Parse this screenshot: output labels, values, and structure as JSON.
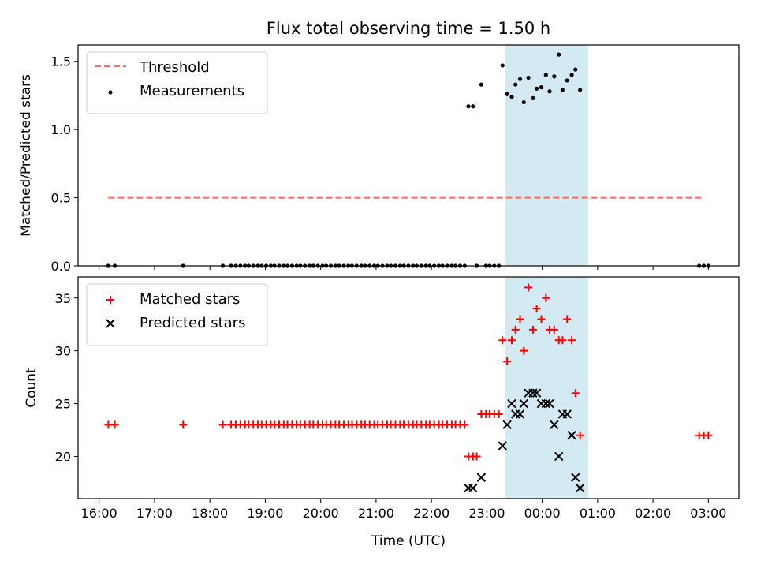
{
  "chart_data": [
    {
      "type": "scatter",
      "title": "Flux total observing time = 1.50 h",
      "xlabel": "",
      "ylabel": "Matched/Predicted stars",
      "ylim": [
        0,
        1.62
      ],
      "yticks": [
        "0.0",
        "0.5",
        "1.0",
        "1.5"
      ],
      "legend_position": "top-left",
      "highlight_band": {
        "start": "23:20",
        "end": "00:50",
        "color": "#add8e6"
      },
      "threshold": {
        "name": "Threshold",
        "value": 0.5,
        "start": "16:10",
        "end": "02:55",
        "color": "#ff6b6b",
        "style": "dashed"
      },
      "series": [
        {
          "name": "Measurements",
          "color": "#000000",
          "marker": "dot",
          "points": [
            [
              "16:10",
              0
            ],
            [
              "16:17",
              0
            ],
            [
              "17:31",
              0
            ],
            [
              "18:14",
              0
            ],
            [
              "18:23",
              0
            ],
            [
              "18:28",
              0
            ],
            [
              "18:33",
              0
            ],
            [
              "18:38",
              0
            ],
            [
              "18:42",
              0
            ],
            [
              "18:47",
              0
            ],
            [
              "18:52",
              0
            ],
            [
              "18:56",
              0
            ],
            [
              "19:01",
              0
            ],
            [
              "19:06",
              0
            ],
            [
              "19:10",
              0
            ],
            [
              "19:15",
              0
            ],
            [
              "19:20",
              0
            ],
            [
              "19:24",
              0
            ],
            [
              "19:29",
              0
            ],
            [
              "19:34",
              0
            ],
            [
              "19:38",
              0
            ],
            [
              "19:43",
              0
            ],
            [
              "19:48",
              0
            ],
            [
              "19:52",
              0
            ],
            [
              "19:57",
              0
            ],
            [
              "20:02",
              0
            ],
            [
              "20:06",
              0
            ],
            [
              "20:11",
              0
            ],
            [
              "20:16",
              0
            ],
            [
              "20:20",
              0
            ],
            [
              "20:25",
              0
            ],
            [
              "20:30",
              0
            ],
            [
              "20:34",
              0
            ],
            [
              "20:39",
              0
            ],
            [
              "20:44",
              0
            ],
            [
              "20:48",
              0
            ],
            [
              "20:53",
              0
            ],
            [
              "20:58",
              0
            ],
            [
              "21:02",
              0
            ],
            [
              "21:07",
              0
            ],
            [
              "21:12",
              0
            ],
            [
              "21:16",
              0
            ],
            [
              "21:21",
              0
            ],
            [
              "21:26",
              0
            ],
            [
              "21:30",
              0
            ],
            [
              "21:35",
              0
            ],
            [
              "21:40",
              0
            ],
            [
              "21:44",
              0
            ],
            [
              "21:49",
              0
            ],
            [
              "21:54",
              0
            ],
            [
              "21:58",
              0
            ],
            [
              "22:03",
              0
            ],
            [
              "22:08",
              0
            ],
            [
              "22:12",
              0
            ],
            [
              "22:17",
              0
            ],
            [
              "22:22",
              0
            ],
            [
              "22:26",
              0
            ],
            [
              "22:31",
              0
            ],
            [
              "22:36",
              0
            ],
            [
              "22:40",
              1.17
            ],
            [
              "22:45",
              1.17
            ],
            [
              "22:49",
              0
            ],
            [
              "22:54",
              1.33
            ],
            [
              "22:59",
              0
            ],
            [
              "23:03",
              0
            ],
            [
              "23:08",
              0
            ],
            [
              "23:13",
              0
            ],
            [
              "23:17",
              1.47
            ],
            [
              "23:22",
              1.26
            ],
            [
              "23:27",
              1.24
            ],
            [
              "23:31",
              1.33
            ],
            [
              "23:36",
              1.37
            ],
            [
              "23:40",
              1.2
            ],
            [
              "23:45",
              1.38
            ],
            [
              "23:50",
              1.23
            ],
            [
              "23:54",
              1.3
            ],
            [
              "23:59",
              1.31
            ],
            [
              "00:04",
              1.4
            ],
            [
              "00:08",
              1.28
            ],
            [
              "00:13",
              1.39
            ],
            [
              "00:18",
              1.55
            ],
            [
              "00:22",
              1.29
            ],
            [
              "00:27",
              1.36
            ],
            [
              "00:32",
              1.4
            ],
            [
              "00:36",
              1.44
            ],
            [
              "00:41",
              1.29
            ],
            [
              "02:50",
              0
            ],
            [
              "02:55",
              0
            ],
            [
              "03:00",
              0
            ]
          ]
        }
      ]
    },
    {
      "type": "scatter",
      "title": "",
      "xlabel": "Time (UTC)",
      "ylabel": "Count",
      "ylim": [
        16,
        37
      ],
      "yticks": [
        "20",
        "25",
        "30",
        "35"
      ],
      "xticks": [
        "16:00",
        "17:00",
        "18:00",
        "19:00",
        "20:00",
        "21:00",
        "22:00",
        "23:00",
        "00:00",
        "01:00",
        "02:00",
        "03:00"
      ],
      "legend_position": "top-left",
      "highlight_band": {
        "start": "23:20",
        "end": "00:50",
        "color": "#add8e6"
      },
      "series": [
        {
          "name": "Matched stars",
          "color": "#ff0000",
          "marker": "plus",
          "points": [
            [
              "16:10",
              23
            ],
            [
              "16:17",
              23
            ],
            [
              "17:31",
              23
            ],
            [
              "18:14",
              23
            ],
            [
              "18:23",
              23
            ],
            [
              "18:28",
              23
            ],
            [
              "18:33",
              23
            ],
            [
              "18:38",
              23
            ],
            [
              "18:42",
              23
            ],
            [
              "18:47",
              23
            ],
            [
              "18:52",
              23
            ],
            [
              "18:56",
              23
            ],
            [
              "19:01",
              23
            ],
            [
              "19:06",
              23
            ],
            [
              "19:10",
              23
            ],
            [
              "19:15",
              23
            ],
            [
              "19:20",
              23
            ],
            [
              "19:24",
              23
            ],
            [
              "19:29",
              23
            ],
            [
              "19:34",
              23
            ],
            [
              "19:38",
              23
            ],
            [
              "19:43",
              23
            ],
            [
              "19:48",
              23
            ],
            [
              "19:52",
              23
            ],
            [
              "19:57",
              23
            ],
            [
              "20:02",
              23
            ],
            [
              "20:06",
              23
            ],
            [
              "20:11",
              23
            ],
            [
              "20:16",
              23
            ],
            [
              "20:20",
              23
            ],
            [
              "20:25",
              23
            ],
            [
              "20:30",
              23
            ],
            [
              "20:34",
              23
            ],
            [
              "20:39",
              23
            ],
            [
              "20:44",
              23
            ],
            [
              "20:48",
              23
            ],
            [
              "20:53",
              23
            ],
            [
              "20:58",
              23
            ],
            [
              "21:02",
              23
            ],
            [
              "21:07",
              23
            ],
            [
              "21:12",
              23
            ],
            [
              "21:16",
              23
            ],
            [
              "21:21",
              23
            ],
            [
              "21:26",
              23
            ],
            [
              "21:30",
              23
            ],
            [
              "21:35",
              23
            ],
            [
              "21:40",
              23
            ],
            [
              "21:44",
              23
            ],
            [
              "21:49",
              23
            ],
            [
              "21:54",
              23
            ],
            [
              "21:58",
              23
            ],
            [
              "22:03",
              23
            ],
            [
              "22:08",
              23
            ],
            [
              "22:12",
              23
            ],
            [
              "22:17",
              23
            ],
            [
              "22:22",
              23
            ],
            [
              "22:26",
              23
            ],
            [
              "22:31",
              23
            ],
            [
              "22:36",
              23
            ],
            [
              "22:40",
              20
            ],
            [
              "22:45",
              20
            ],
            [
              "22:49",
              20
            ],
            [
              "22:54",
              24
            ],
            [
              "22:59",
              24
            ],
            [
              "23:03",
              24
            ],
            [
              "23:08",
              24
            ],
            [
              "23:13",
              24
            ],
            [
              "23:17",
              31
            ],
            [
              "23:22",
              29
            ],
            [
              "23:27",
              31
            ],
            [
              "23:31",
              32
            ],
            [
              "23:36",
              33
            ],
            [
              "23:40",
              30
            ],
            [
              "23:45",
              36
            ],
            [
              "23:50",
              32
            ],
            [
              "23:54",
              34
            ],
            [
              "23:59",
              33
            ],
            [
              "00:04",
              35
            ],
            [
              "00:08",
              32
            ],
            [
              "00:13",
              32
            ],
            [
              "00:18",
              31
            ],
            [
              "00:22",
              31
            ],
            [
              "00:27",
              33
            ],
            [
              "00:32",
              31
            ],
            [
              "00:36",
              26
            ],
            [
              "00:41",
              22
            ],
            [
              "02:50",
              22
            ],
            [
              "02:55",
              22
            ],
            [
              "03:00",
              22
            ]
          ]
        },
        {
          "name": "Predicted stars",
          "color": "#000000",
          "marker": "x",
          "points": [
            [
              "22:40",
              17
            ],
            [
              "22:45",
              17
            ],
            [
              "22:54",
              18
            ],
            [
              "23:17",
              21
            ],
            [
              "23:22",
              23
            ],
            [
              "23:27",
              25
            ],
            [
              "23:31",
              24
            ],
            [
              "23:36",
              24
            ],
            [
              "23:40",
              25
            ],
            [
              "23:45",
              26
            ],
            [
              "23:50",
              26
            ],
            [
              "23:54",
              26
            ],
            [
              "23:59",
              25
            ],
            [
              "00:04",
              25
            ],
            [
              "00:08",
              25
            ],
            [
              "00:13",
              23
            ],
            [
              "00:18",
              20
            ],
            [
              "00:22",
              24
            ],
            [
              "00:27",
              24
            ],
            [
              "00:32",
              22
            ],
            [
              "00:36",
              18
            ],
            [
              "00:41",
              17
            ]
          ]
        }
      ]
    }
  ]
}
